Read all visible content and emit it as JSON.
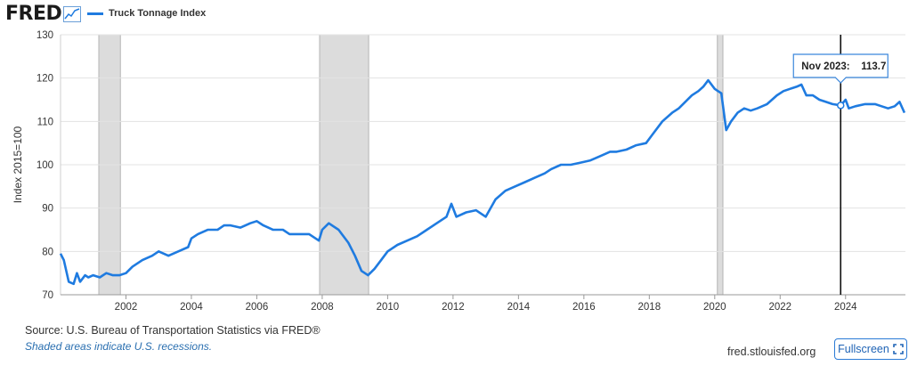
{
  "header": {
    "logo_text": "FRED",
    "legend_label": "Truck Tonnage Index",
    "legend_color": "#1f7be0"
  },
  "chart_data": {
    "type": "line",
    "title": "",
    "xlabel": "",
    "ylabel": "Index 2015=100",
    "xlim": [
      2000.0,
      2025.83
    ],
    "ylim": [
      70,
      130
    ],
    "y_ticks": [
      70,
      80,
      90,
      100,
      110,
      120,
      130
    ],
    "x_ticks": [
      2002,
      2004,
      2006,
      2008,
      2010,
      2012,
      2014,
      2016,
      2018,
      2020,
      2022,
      2024
    ],
    "grid": "horizontal",
    "series_color": "#1f7be0",
    "recession_color": "#dcdcdc",
    "recessions": [
      [
        2001.17,
        2001.83
      ],
      [
        2007.92,
        2009.42
      ],
      [
        2020.08,
        2020.25
      ]
    ],
    "series": [
      {
        "name": "Truck Tonnage Index",
        "x": [
          2000.0,
          2000.1,
          2000.25,
          2000.4,
          2000.5,
          2000.6,
          2000.75,
          2000.85,
          2001.0,
          2001.2,
          2001.4,
          2001.6,
          2001.8,
          2002.0,
          2002.2,
          2002.5,
          2002.8,
          2003.0,
          2003.3,
          2003.6,
          2003.9,
          2004.0,
          2004.2,
          2004.5,
          2004.8,
          2005.0,
          2005.2,
          2005.5,
          2005.8,
          2006.0,
          2006.2,
          2006.5,
          2006.8,
          2007.0,
          2007.3,
          2007.6,
          2007.9,
          2008.0,
          2008.2,
          2008.5,
          2008.8,
          2009.0,
          2009.2,
          2009.4,
          2009.6,
          2009.8,
          2010.0,
          2010.3,
          2010.6,
          2010.9,
          2011.2,
          2011.5,
          2011.8,
          2011.95,
          2012.1,
          2012.4,
          2012.7,
          2013.0,
          2013.3,
          2013.6,
          2013.9,
          2014.2,
          2014.5,
          2014.8,
          2015.0,
          2015.3,
          2015.6,
          2015.9,
          2016.2,
          2016.5,
          2016.8,
          2017.0,
          2017.3,
          2017.6,
          2017.9,
          2018.1,
          2018.4,
          2018.7,
          2018.9,
          2019.1,
          2019.3,
          2019.5,
          2019.65,
          2019.8,
          2020.0,
          2020.1,
          2020.2,
          2020.35,
          2020.5,
          2020.7,
          2020.9,
          2021.1,
          2021.3,
          2021.6,
          2021.9,
          2022.1,
          2022.3,
          2022.5,
          2022.65,
          2022.8,
          2023.0,
          2023.2,
          2023.4,
          2023.6,
          2023.85,
          2024.0,
          2024.1,
          2024.3,
          2024.6,
          2024.9,
          2025.1,
          2025.3,
          2025.5,
          2025.65,
          2025.8
        ],
        "values": [
          79.5,
          78,
          73,
          72.5,
          75,
          73,
          74.5,
          74,
          74.5,
          74,
          75,
          74.5,
          74.5,
          75,
          76.5,
          78,
          79,
          80,
          79,
          80,
          81,
          83,
          84,
          85,
          85,
          86,
          86,
          85.5,
          86.5,
          87,
          86,
          85,
          85,
          84,
          84,
          84,
          82.5,
          85,
          86.5,
          85,
          82,
          79,
          75.5,
          74.5,
          76,
          78,
          80,
          81.5,
          82.5,
          83.5,
          85,
          86.5,
          88,
          91,
          88,
          89,
          89.5,
          88,
          92,
          94,
          95,
          96,
          97,
          98,
          99,
          100,
          100,
          100.5,
          101,
          102,
          103,
          103,
          103.5,
          104.5,
          105,
          107,
          110,
          112,
          113,
          114.5,
          116,
          117,
          118,
          119.5,
          117.5,
          117,
          116.5,
          108,
          110,
          112,
          113,
          112.5,
          113,
          114,
          116,
          117,
          117.5,
          118,
          118.5,
          116,
          116,
          115,
          114.5,
          114,
          113.7,
          115,
          113,
          113.5,
          114,
          114,
          113.5,
          113,
          113.5,
          114.5,
          112
        ]
      }
    ],
    "tooltip": {
      "label": "Nov 2023:",
      "value": "113.7",
      "x": 2023.85
    }
  },
  "footer": {
    "source": "Source: U.S. Bureau of Transportation Statistics via FRED®",
    "note": "Shaded areas indicate U.S. recessions.",
    "site": "fred.stlouisfed.org",
    "fullscreen_label": "Fullscreen"
  }
}
